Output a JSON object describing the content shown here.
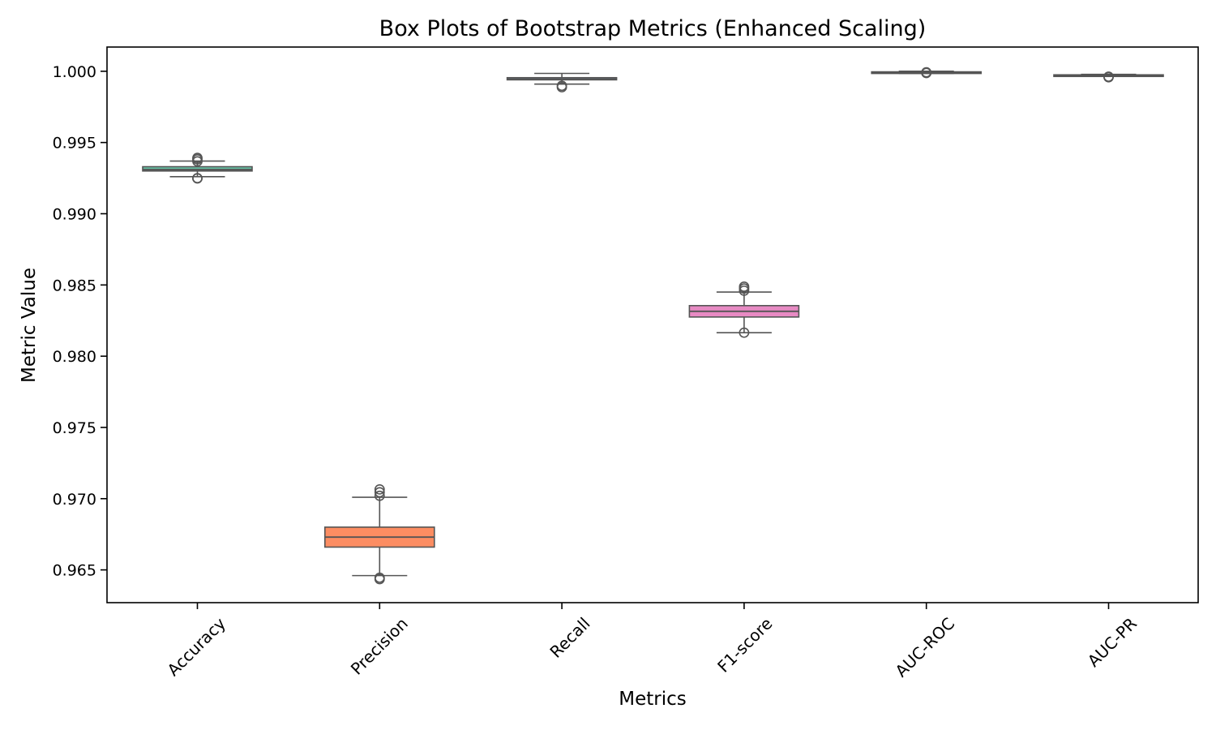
{
  "chart_data": {
    "type": "box",
    "title": "Box Plots of Bootstrap Metrics (Enhanced Scaling)",
    "xlabel": "Metrics",
    "ylabel": "Metric Value",
    "ylim": [
      0.9627,
      1.0017
    ],
    "yticks": [
      0.965,
      0.97,
      0.975,
      0.98,
      0.985,
      0.99,
      0.995,
      1.0
    ],
    "ytick_labels": [
      "0.965",
      "0.970",
      "0.975",
      "0.980",
      "0.985",
      "0.990",
      "0.995",
      "1.000"
    ],
    "grid": false,
    "categories": [
      "Accuracy",
      "Precision",
      "Recall",
      "F1-score",
      "AUC-ROC",
      "AUC-PR"
    ],
    "series": [
      {
        "category": "Accuracy",
        "color": "#66c2a5",
        "whisker_low": 0.9926,
        "q1": 0.993,
        "median": 0.9931,
        "q3": 0.9933,
        "whisker_high": 0.9937,
        "outliers": [
          0.9925,
          0.99248,
          0.99368,
          0.99382,
          0.99392
        ]
      },
      {
        "category": "Precision",
        "color": "#fc8d62",
        "whisker_low": 0.9646,
        "q1": 0.9666,
        "median": 0.9673,
        "q3": 0.968,
        "whisker_high": 0.9701,
        "outliers": [
          0.96435,
          0.96445,
          0.9702,
          0.97045,
          0.97065
        ]
      },
      {
        "category": "Recall",
        "color": "#8da0cb",
        "whisker_low": 0.9991,
        "q1": 0.9994,
        "median": 0.99945,
        "q3": 0.99955,
        "whisker_high": 0.99985,
        "outliers": [
          0.99888,
          0.99898
        ]
      },
      {
        "category": "F1-score",
        "color": "#e78ac3",
        "whisker_low": 0.98165,
        "q1": 0.98275,
        "median": 0.98315,
        "q3": 0.98355,
        "whisker_high": 0.9845,
        "outliers": [
          0.98165,
          0.9846,
          0.98475,
          0.98488
        ]
      },
      {
        "category": "AUC-ROC",
        "color": "#a6d854",
        "whisker_low": 0.99985,
        "q1": 0.99988,
        "median": 0.99992,
        "q3": 0.99996,
        "whisker_high": 1.0,
        "outliers": [
          0.99988,
          0.99993
        ]
      },
      {
        "category": "AUC-PR",
        "color": "#ffd92f",
        "whisker_low": 0.99965,
        "q1": 0.99968,
        "median": 0.99971,
        "q3": 0.99975,
        "whisker_high": 0.99978,
        "outliers": [
          0.99958,
          0.99962
        ]
      }
    ]
  }
}
